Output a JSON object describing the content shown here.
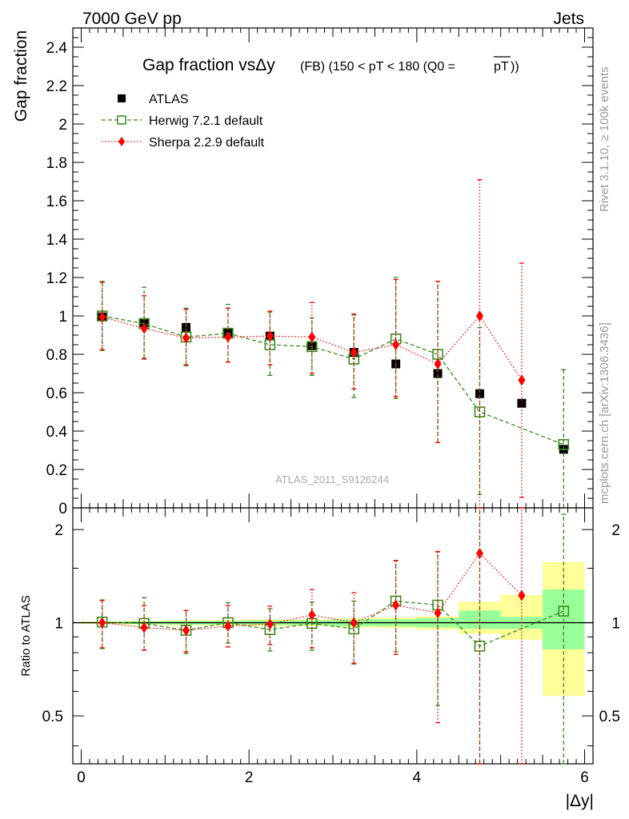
{
  "header": {
    "left": "7000 GeV pp",
    "right": "Jets"
  },
  "side_text": {
    "rivet": "Rivet 3.1.10, ≥ 100k events",
    "mcplots": "mcplots.cern.ch [arXiv:1306.3436]"
  },
  "watermark": "ATLAS_2011_S9126244",
  "title": {
    "main": "Gap fraction vsΔy",
    "sub": "(FB) (150 < pT < 180 (Q0 =",
    "overline": "pT",
    "close": "))"
  },
  "colors": {
    "atlas": "#000000",
    "herwig": "#3c8a1e",
    "sherpa": "#ff0000",
    "band_inner": "#99ff99",
    "band_outer": "#ffff99"
  },
  "chart_data": [
    {
      "type": "scatter",
      "panel": "main",
      "ylabel": "Gap fraction",
      "xlabel": "|Δy|",
      "xlim": [
        -0.1,
        6.1
      ],
      "ylim": [
        0,
        2.5
      ],
      "x_ticks": [
        "0",
        "2",
        "4",
        "6"
      ],
      "y_ticks": [
        "0",
        "0.2",
        "0.4",
        "0.6",
        "0.8",
        "1",
        "1.2",
        "1.4",
        "1.6",
        "1.8",
        "2",
        "2.2",
        "2.4"
      ],
      "x": [
        0.25,
        0.75,
        1.25,
        1.75,
        2.25,
        2.75,
        3.25,
        3.75,
        4.25,
        4.75,
        5.25,
        5.75
      ],
      "series": [
        {
          "name": "ATLAS",
          "style": "black-square",
          "values": [
            0.995,
            0.965,
            0.94,
            0.91,
            0.895,
            0.845,
            0.81,
            0.75,
            0.7,
            0.595,
            0.545,
            0.305
          ],
          "err_lo": [
            0.005,
            0.01,
            0.012,
            0.012,
            0.015,
            0.015,
            0.02,
            0.02,
            0.025,
            0.025,
            0.02,
            0.025
          ],
          "err_hi": [
            0.005,
            0.01,
            0.012,
            0.012,
            0.015,
            0.015,
            0.02,
            0.02,
            0.025,
            0.025,
            0.02,
            0.025
          ]
        },
        {
          "name": "Herwig 7.2.1 default",
          "style": "green-open-square-dashed",
          "values": [
            1.0,
            0.96,
            0.89,
            0.91,
            0.85,
            0.84,
            0.775,
            0.88,
            0.8,
            0.5,
            null,
            0.33
          ],
          "err_lo": [
            0.18,
            0.18,
            0.15,
            0.15,
            0.16,
            0.15,
            0.2,
            0.31,
            0.46,
            0.43,
            null,
            0.33
          ],
          "err_hi": [
            0.18,
            0.19,
            0.15,
            0.15,
            0.17,
            0.15,
            0.23,
            0.32,
            0.38,
            0.44,
            null,
            0.39
          ]
        },
        {
          "name": "Sherpa 2.2.9 default",
          "style": "red-diamond-dotted",
          "values": [
            0.995,
            0.935,
            0.885,
            0.89,
            0.895,
            0.89,
            0.81,
            0.85,
            0.75,
            1.0,
            0.665,
            null
          ],
          "err_lo": [
            0.17,
            0.16,
            0.14,
            0.13,
            0.15,
            0.19,
            0.19,
            0.27,
            0.41,
            1.0,
            0.61,
            null
          ],
          "err_hi": [
            0.18,
            0.17,
            0.15,
            0.15,
            0.13,
            0.18,
            0.2,
            0.34,
            0.43,
            0.71,
            0.61,
            null
          ]
        }
      ]
    },
    {
      "type": "scatter",
      "panel": "ratio",
      "ylabel": "Ratio to ATLAS",
      "xlabel": "|Δy|",
      "xlim": [
        -0.1,
        6.1
      ],
      "ylim": [
        0.35,
        2.35
      ],
      "y_scale": "log",
      "y_ticks": [
        "0.5",
        "1",
        "2"
      ],
      "x": [
        0.25,
        0.75,
        1.25,
        1.75,
        2.25,
        2.75,
        3.25,
        3.75,
        4.25,
        4.75,
        5.25,
        5.75
      ],
      "bands": {
        "inner": [
          [
            0.995,
            1.005
          ],
          [
            0.99,
            1.01
          ],
          [
            0.987,
            1.013
          ],
          [
            0.987,
            1.013
          ],
          [
            0.983,
            1.017
          ],
          [
            0.982,
            1.018
          ],
          [
            0.975,
            1.025
          ],
          [
            0.973,
            1.027
          ],
          [
            0.965,
            1.035
          ],
          [
            0.955,
            1.095
          ],
          [
            0.955,
            1.045
          ],
          [
            0.82,
            1.28
          ]
        ],
        "outer": [
          [
            0.99,
            1.01
          ],
          [
            0.985,
            1.015
          ],
          [
            0.98,
            1.02
          ],
          [
            0.98,
            1.02
          ],
          [
            0.975,
            1.025
          ],
          [
            0.975,
            1.025
          ],
          [
            0.965,
            1.035
          ],
          [
            0.96,
            1.04
          ],
          [
            0.95,
            1.05
          ],
          [
            0.92,
            1.17
          ],
          [
            0.88,
            1.23
          ],
          [
            0.58,
            1.57
          ]
        ]
      },
      "series": [
        {
          "name": "Herwig 7.2.1 default",
          "values": [
            1.005,
            0.995,
            0.945,
            1.0,
            0.95,
            0.995,
            0.955,
            1.175,
            1.14,
            0.84,
            null,
            1.09
          ],
          "err_lo": [
            0.18,
            0.18,
            0.15,
            0.14,
            0.14,
            0.18,
            0.22,
            0.37,
            0.6,
            0.75,
            null,
            1.06
          ],
          "err_hi": [
            0.18,
            0.21,
            0.15,
            0.16,
            0.16,
            0.17,
            0.22,
            0.41,
            0.56,
            1.6,
            null,
            1.15
          ]
        },
        {
          "name": "Sherpa 2.2.9 default",
          "values": [
            1.0,
            0.965,
            0.945,
            0.975,
            0.99,
            1.06,
            1.0,
            1.14,
            1.075,
            1.675,
            1.225,
            null
          ],
          "err_lo": [
            0.17,
            0.15,
            0.14,
            0.14,
            0.14,
            0.23,
            0.26,
            0.35,
            0.6,
            1.35,
            1.1,
            null
          ],
          "err_hi": [
            0.18,
            0.17,
            0.15,
            0.16,
            0.14,
            0.22,
            0.25,
            0.45,
            0.62,
            1.1,
            1.15,
            null
          ]
        }
      ]
    }
  ]
}
